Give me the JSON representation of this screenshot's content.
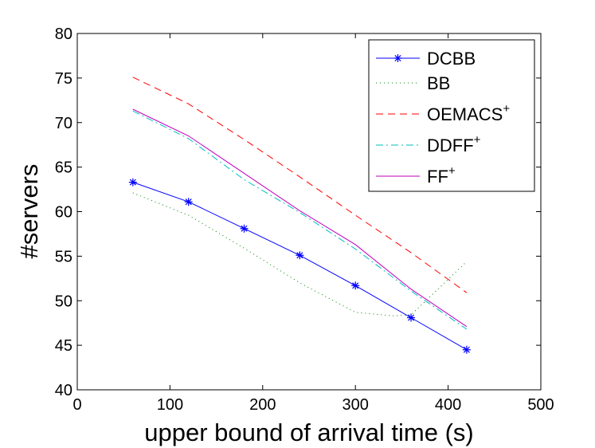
{
  "chart_data": {
    "type": "line",
    "title": "",
    "xlabel": "upper bound of arrival time (s)",
    "ylabel": "#servers",
    "xlim": [
      0,
      500
    ],
    "ylim": [
      40,
      80
    ],
    "xticks": [
      0,
      100,
      200,
      300,
      400,
      500
    ],
    "yticks": [
      40,
      45,
      50,
      55,
      60,
      65,
      70,
      75,
      80
    ],
    "grid": false,
    "legend_position": "top-right",
    "series": [
      {
        "name": "DCBB",
        "sup": "",
        "color": "#0000ff",
        "dash": "solid",
        "marker": "asterisk",
        "x": [
          60,
          120,
          180,
          240,
          300,
          360,
          420
        ],
        "y": [
          63.3,
          61.1,
          58.1,
          55.1,
          51.7,
          48.1,
          44.5
        ]
      },
      {
        "name": "BB",
        "sup": "",
        "color": "#008000",
        "dash": "dotted",
        "marker": "none",
        "x": [
          60,
          120,
          180,
          240,
          300,
          340,
          360,
          420
        ],
        "y": [
          62.1,
          59.6,
          55.9,
          52.0,
          48.7,
          48.3,
          48.4,
          54.4
        ]
      },
      {
        "name": "OEMACS",
        "sup": "+",
        "color": "#ff0000",
        "dash": "dashed",
        "marker": "none",
        "x": [
          60,
          120,
          180,
          240,
          300,
          360,
          420
        ],
        "y": [
          75.1,
          72.1,
          68.1,
          63.9,
          59.6,
          55.4,
          50.9
        ]
      },
      {
        "name": "DDFF",
        "sup": "+",
        "color": "#00bfbf",
        "dash": "dashdot",
        "marker": "none",
        "x": [
          60,
          120,
          180,
          240,
          300,
          360,
          420
        ],
        "y": [
          71.3,
          68.2,
          63.6,
          59.9,
          55.8,
          51.1,
          46.8
        ]
      },
      {
        "name": "FF",
        "sup": "+",
        "color": "#bf00bf",
        "dash": "solid",
        "marker": "none",
        "x": [
          60,
          120,
          180,
          240,
          300,
          360,
          420
        ],
        "y": [
          71.5,
          68.5,
          64.3,
          60.1,
          56.3,
          51.3,
          47.1
        ]
      }
    ]
  }
}
